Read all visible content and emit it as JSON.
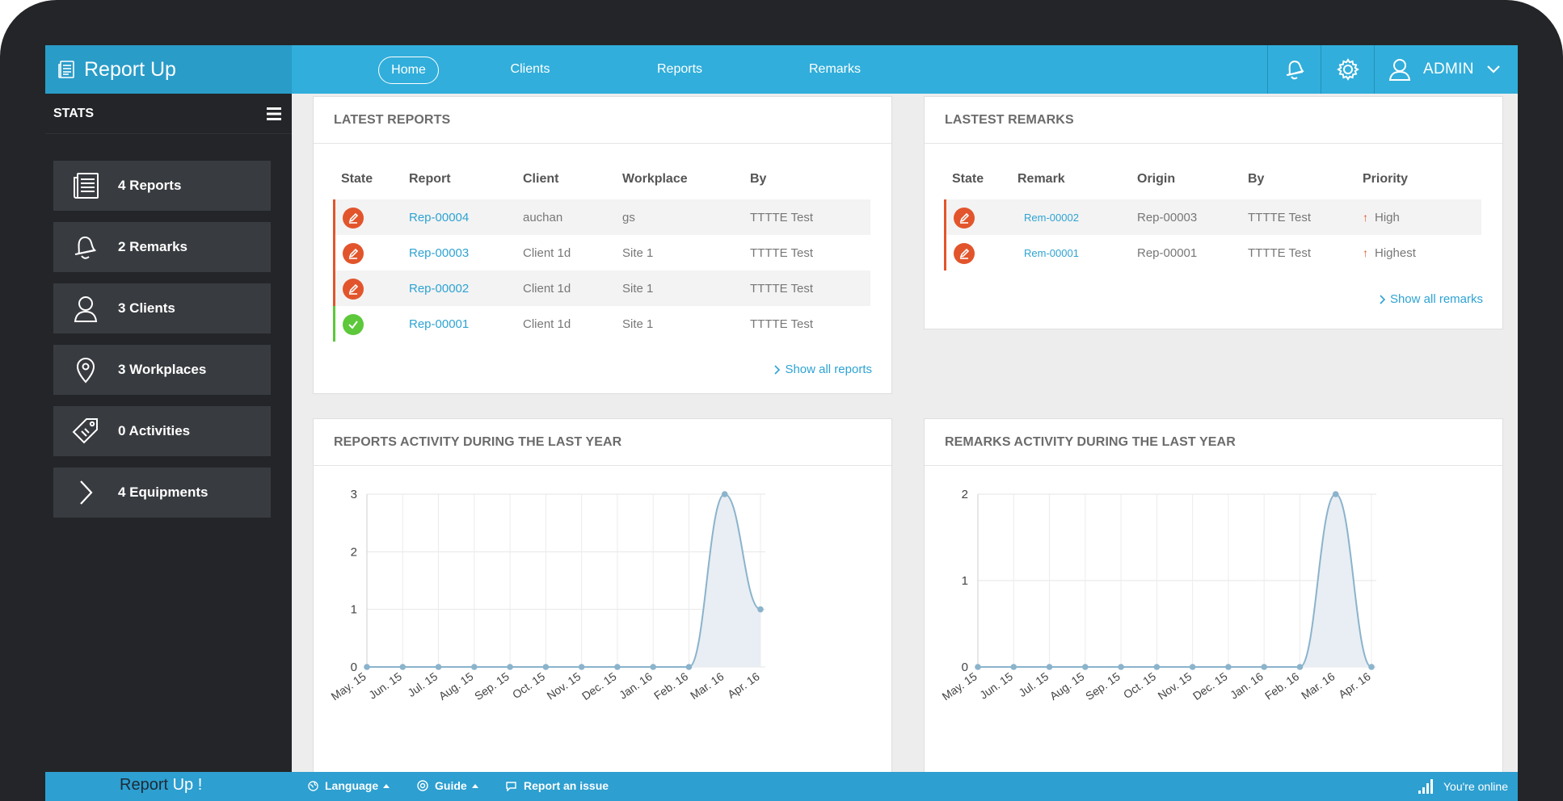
{
  "app": {
    "name": "Report Up",
    "footer_brand_1": "Report",
    "footer_brand_2": "Up !"
  },
  "nav": {
    "items": [
      "Home",
      "Clients",
      "Reports",
      "Remarks"
    ],
    "active": "Home",
    "user": "ADMIN"
  },
  "sidebar": {
    "title": "STATS",
    "items": [
      {
        "label": "4 Reports",
        "icon": "reports-icon"
      },
      {
        "label": "2 Remarks",
        "icon": "bell-icon"
      },
      {
        "label": "3 Clients",
        "icon": "user-icon"
      },
      {
        "label": "3 Workplaces",
        "icon": "location-pin-icon"
      },
      {
        "label": "0 Activities",
        "icon": "tag-icon"
      },
      {
        "label": "4 Equipments",
        "icon": "chevron-right-icon"
      }
    ]
  },
  "latest_reports": {
    "title": "LATEST REPORTS",
    "columns": [
      "State",
      "Report",
      "Client",
      "Workplace",
      "By"
    ],
    "rows": [
      {
        "state": "draft",
        "report": "Rep-00004",
        "client": "auchan",
        "workplace": "gs",
        "by": "TTTTE Test"
      },
      {
        "state": "draft",
        "report": "Rep-00003",
        "client": "Client 1d",
        "workplace": "Site 1",
        "by": "TTTTE Test"
      },
      {
        "state": "draft",
        "report": "Rep-00002",
        "client": "Client 1d",
        "workplace": "Site 1",
        "by": "TTTTE Test"
      },
      {
        "state": "done",
        "report": "Rep-00001",
        "client": "Client 1d",
        "workplace": "Site 1",
        "by": "TTTTE Test"
      }
    ],
    "show_all": "Show all reports"
  },
  "latest_remarks": {
    "title": "LASTEST REMARKS",
    "columns": [
      "State",
      "Remark",
      "Origin",
      "By",
      "Priority"
    ],
    "rows": [
      {
        "state": "draft",
        "remark": "Rem-00002",
        "origin": "Rep-00003",
        "by": "TTTTE Test",
        "priority": "High"
      },
      {
        "state": "draft",
        "remark": "Rem-00001",
        "origin": "Rep-00001",
        "by": "TTTTE Test",
        "priority": "Highest"
      }
    ],
    "show_all": "Show all remarks"
  },
  "colors": {
    "draft": "#e2552c",
    "done": "#5cc83a",
    "accent": "#31aedb",
    "line": "#8bb3cc",
    "area": "#e8eef3"
  },
  "chart_data": [
    {
      "type": "area",
      "title": "REPORTS ACTIVITY DURING THE LAST YEAR",
      "categories": [
        "May. 15",
        "Jun. 15",
        "Jul. 15",
        "Aug. 15",
        "Sep. 15",
        "Oct. 15",
        "Nov. 15",
        "Dec. 15",
        "Jan. 16",
        "Feb. 16",
        "Mar. 16",
        "Apr. 16"
      ],
      "values": [
        0,
        0,
        0,
        0,
        0,
        0,
        0,
        0,
        0,
        0,
        3,
        1
      ],
      "ylim": [
        0,
        3
      ],
      "yticks": [
        0,
        1,
        2,
        3
      ],
      "grid": true
    },
    {
      "type": "area",
      "title": "REMARKS ACTIVITY DURING THE LAST YEAR",
      "categories": [
        "May. 15",
        "Jun. 15",
        "Jul. 15",
        "Aug. 15",
        "Sep. 15",
        "Oct. 15",
        "Nov. 15",
        "Dec. 15",
        "Jan. 16",
        "Feb. 16",
        "Mar. 16",
        "Apr. 16"
      ],
      "values": [
        0,
        0,
        0,
        0,
        0,
        0,
        0,
        0,
        0,
        0,
        2,
        0
      ],
      "ylim": [
        0,
        2
      ],
      "yticks": [
        0,
        1,
        2
      ],
      "grid": true
    }
  ],
  "footer": {
    "language": "Language",
    "guide": "Guide",
    "report_issue": "Report an issue",
    "status": "You're online"
  }
}
